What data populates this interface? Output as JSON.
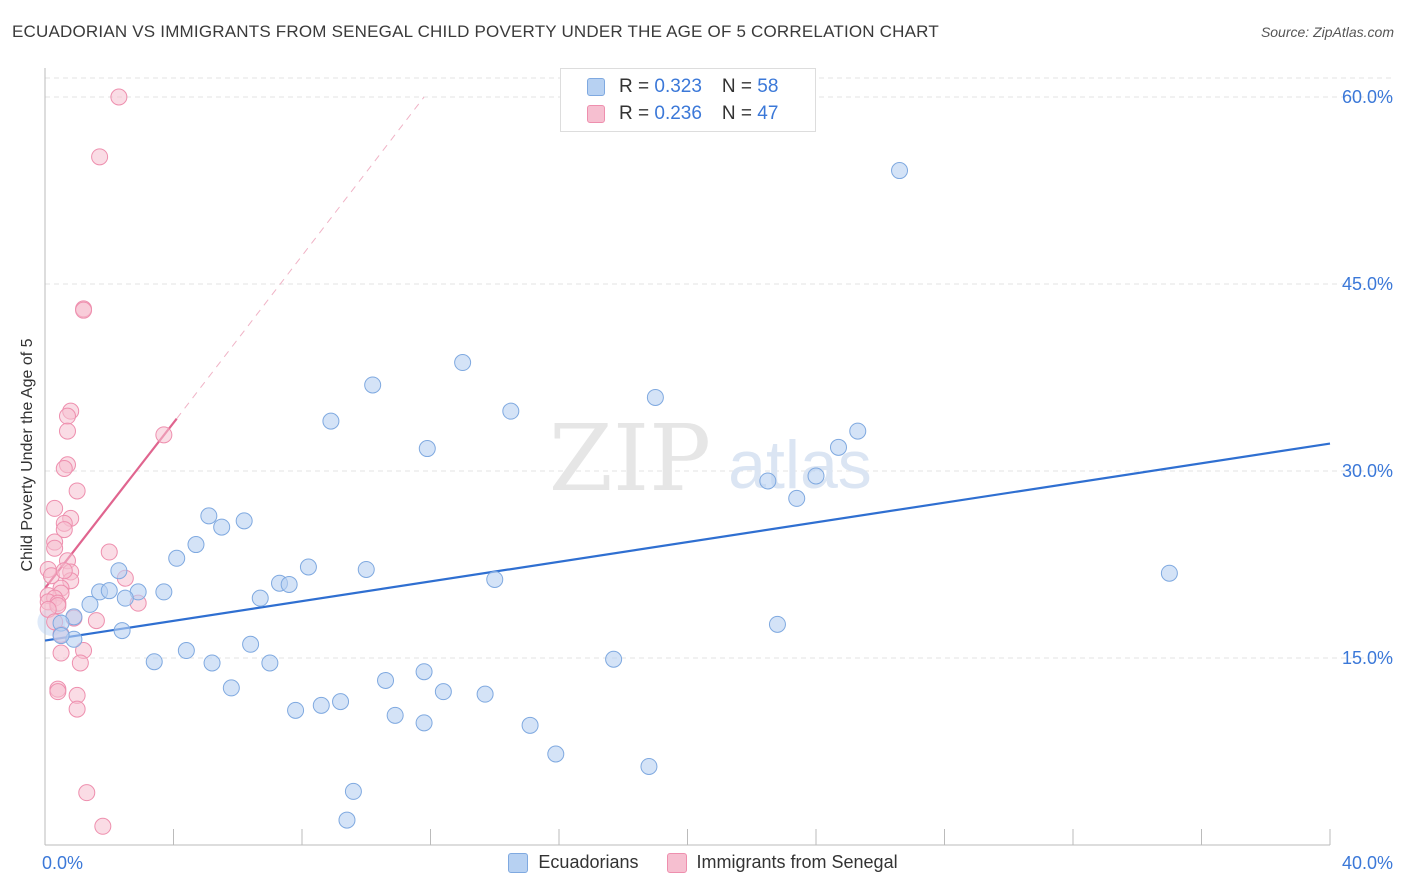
{
  "title": "ECUADORIAN VS IMMIGRANTS FROM SENEGAL CHILD POVERTY UNDER THE AGE OF 5 CORRELATION CHART",
  "source": "Source: ZipAtlas.com",
  "watermark": {
    "zip": "ZIP",
    "atlas": "atlas"
  },
  "legend_top": [
    {
      "r_label": "R = ",
      "r_value": "0.323",
      "n_label": "N = ",
      "n_value": "58"
    },
    {
      "r_label": "R = ",
      "r_value": "0.236",
      "n_label": "N = ",
      "n_value": "47"
    }
  ],
  "colors": {
    "blue_fill": "#b7d1f2",
    "blue_stroke": "#7fa9e0",
    "blue_line": "#2f6fd1",
    "pink_fill": "#f6bfd0",
    "pink_stroke": "#ee8fae",
    "pink_line": "#e0658f",
    "tick_text": "#3b78d8",
    "grid": "#e3e3e3"
  },
  "chart_data": {
    "type": "scatter",
    "title": "ECUADORIAN VS IMMIGRANTS FROM SENEGAL CHILD POVERTY UNDER THE AGE OF 5 CORRELATION CHART",
    "xlabel": "",
    "ylabel": "Child Poverty Under the Age of 5",
    "xlim": [
      0,
      40
    ],
    "ylim": [
      0,
      60
    ],
    "x_tick_labels": [
      "0.0%",
      "40.0%"
    ],
    "y_ticks": [
      15,
      30,
      45,
      60
    ],
    "y_tick_labels": [
      "15.0%",
      "30.0%",
      "45.0%",
      "60.0%"
    ],
    "series": [
      {
        "name": "Ecuadorians",
        "r": 0.323,
        "n": 58,
        "trend": {
          "x0": 0,
          "y0": 16.4,
          "x1": 40,
          "y1": 32.2
        },
        "points": [
          [
            26.6,
            54.1
          ],
          [
            13.0,
            38.7
          ],
          [
            10.2,
            36.9
          ],
          [
            19.0,
            35.9
          ],
          [
            8.9,
            34.0
          ],
          [
            14.5,
            34.8
          ],
          [
            11.9,
            31.8
          ],
          [
            24.7,
            31.9
          ],
          [
            25.3,
            33.2
          ],
          [
            22.5,
            29.2
          ],
          [
            23.4,
            27.8
          ],
          [
            24.0,
            29.6
          ],
          [
            5.1,
            26.4
          ],
          [
            6.2,
            26.0
          ],
          [
            5.5,
            25.5
          ],
          [
            4.7,
            24.1
          ],
          [
            4.1,
            23.0
          ],
          [
            8.2,
            22.3
          ],
          [
            10.0,
            22.1
          ],
          [
            14.0,
            21.3
          ],
          [
            7.3,
            21.0
          ],
          [
            7.6,
            20.9
          ],
          [
            2.3,
            22.0
          ],
          [
            2.9,
            20.3
          ],
          [
            1.7,
            20.3
          ],
          [
            2.0,
            20.4
          ],
          [
            2.5,
            19.8
          ],
          [
            3.7,
            20.3
          ],
          [
            6.7,
            19.8
          ],
          [
            1.4,
            19.3
          ],
          [
            0.9,
            18.3
          ],
          [
            0.5,
            17.8
          ],
          [
            0.9,
            16.5
          ],
          [
            0.5,
            16.8
          ],
          [
            2.4,
            17.2
          ],
          [
            22.8,
            17.7
          ],
          [
            6.4,
            16.1
          ],
          [
            4.4,
            15.6
          ],
          [
            3.4,
            14.7
          ],
          [
            5.2,
            14.6
          ],
          [
            7.0,
            14.6
          ],
          [
            17.7,
            14.9
          ],
          [
            11.8,
            13.9
          ],
          [
            10.6,
            13.2
          ],
          [
            5.8,
            12.6
          ],
          [
            12.4,
            12.3
          ],
          [
            13.7,
            12.1
          ],
          [
            9.2,
            11.5
          ],
          [
            8.6,
            11.2
          ],
          [
            7.8,
            10.8
          ],
          [
            10.9,
            10.4
          ],
          [
            11.8,
            9.8
          ],
          [
            15.1,
            9.6
          ],
          [
            15.9,
            7.3
          ],
          [
            18.8,
            6.3
          ],
          [
            9.6,
            4.3
          ],
          [
            9.4,
            2.0
          ],
          [
            35.0,
            21.8
          ]
        ]
      },
      {
        "name": "Immigrants from Senegal",
        "r": 0.236,
        "n": 47,
        "trend": {
          "x0": 0,
          "y0": 20.6,
          "x1": 4.1,
          "y1": 34.2
        },
        "trend_extension": {
          "x0": 4.1,
          "y0": 34.2,
          "x1": 11.8,
          "y1": 60.0
        },
        "points": [
          [
            2.3,
            60.0
          ],
          [
            1.7,
            55.2
          ],
          [
            1.2,
            43.0
          ],
          [
            1.2,
            42.9
          ],
          [
            0.8,
            34.8
          ],
          [
            0.7,
            34.4
          ],
          [
            0.7,
            33.2
          ],
          [
            3.7,
            32.9
          ],
          [
            0.7,
            30.5
          ],
          [
            0.6,
            30.2
          ],
          [
            1.0,
            28.4
          ],
          [
            0.3,
            27.0
          ],
          [
            0.8,
            26.2
          ],
          [
            0.6,
            25.8
          ],
          [
            0.6,
            25.3
          ],
          [
            0.3,
            24.3
          ],
          [
            0.3,
            23.8
          ],
          [
            2.0,
            23.5
          ],
          [
            0.7,
            22.8
          ],
          [
            0.1,
            22.1
          ],
          [
            0.8,
            21.9
          ],
          [
            2.5,
            21.4
          ],
          [
            0.8,
            21.2
          ],
          [
            0.5,
            20.6
          ],
          [
            0.5,
            20.2
          ],
          [
            0.1,
            20.0
          ],
          [
            0.3,
            19.8
          ],
          [
            0.1,
            19.5
          ],
          [
            0.4,
            19.4
          ],
          [
            0.4,
            19.2
          ],
          [
            2.9,
            19.4
          ],
          [
            0.9,
            18.2
          ],
          [
            1.6,
            18.0
          ],
          [
            0.5,
            16.9
          ],
          [
            1.2,
            15.6
          ],
          [
            0.5,
            15.4
          ],
          [
            1.1,
            14.6
          ],
          [
            0.4,
            12.5
          ],
          [
            0.4,
            12.3
          ],
          [
            1.0,
            12.0
          ],
          [
            1.0,
            10.9
          ],
          [
            1.3,
            4.2
          ],
          [
            1.8,
            1.5
          ],
          [
            0.2,
            21.6
          ],
          [
            0.6,
            22.0
          ],
          [
            0.1,
            18.9
          ],
          [
            0.3,
            17.9
          ]
        ]
      }
    ]
  }
}
